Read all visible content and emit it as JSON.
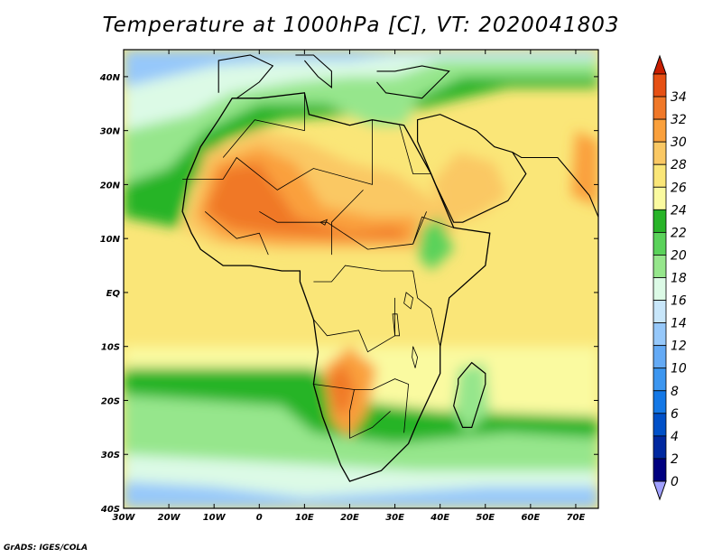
{
  "title": "Temperature at 1000hPa [C], VT: 2020041803",
  "credit": "GrADS: IGES/COLA",
  "map": {
    "lon_range": [
      -30,
      75
    ],
    "lat_range": [
      -40,
      45
    ],
    "lat_ticks": [
      {
        "value": 40,
        "label": "40N"
      },
      {
        "value": 30,
        "label": "30N"
      },
      {
        "value": 20,
        "label": "20N"
      },
      {
        "value": 10,
        "label": "10N"
      },
      {
        "value": 0,
        "label": "EQ"
      },
      {
        "value": -10,
        "label": "10S"
      },
      {
        "value": -20,
        "label": "20S"
      },
      {
        "value": -30,
        "label": "30S"
      },
      {
        "value": -40,
        "label": "40S"
      }
    ],
    "lon_ticks": [
      {
        "value": -30,
        "label": "30W"
      },
      {
        "value": -20,
        "label": "20W"
      },
      {
        "value": -10,
        "label": "10W"
      },
      {
        "value": 0,
        "label": "0"
      },
      {
        "value": 10,
        "label": "10E"
      },
      {
        "value": 20,
        "label": "20E"
      },
      {
        "value": 30,
        "label": "30E"
      },
      {
        "value": 40,
        "label": "40E"
      },
      {
        "value": 50,
        "label": "50E"
      },
      {
        "value": 60,
        "label": "60E"
      },
      {
        "value": 70,
        "label": "70E"
      }
    ]
  },
  "colorbar": {
    "unit": "C",
    "levels": [
      0,
      2,
      4,
      6,
      8,
      10,
      12,
      14,
      16,
      18,
      20,
      22,
      24,
      26,
      28,
      30,
      32,
      34
    ],
    "colors": [
      "#a0a0ff",
      "#000080",
      "#0028a0",
      "#0050c8",
      "#1478e6",
      "#3c96f0",
      "#64aaf5",
      "#96c8fa",
      "#c8e6fa",
      "#dcfae6",
      "#96e68c",
      "#5ad25a",
      "#28b428",
      "#fafaa0",
      "#fae678",
      "#fac864",
      "#faa03c",
      "#f07828",
      "#e65014",
      "#c81e00"
    ]
  }
}
